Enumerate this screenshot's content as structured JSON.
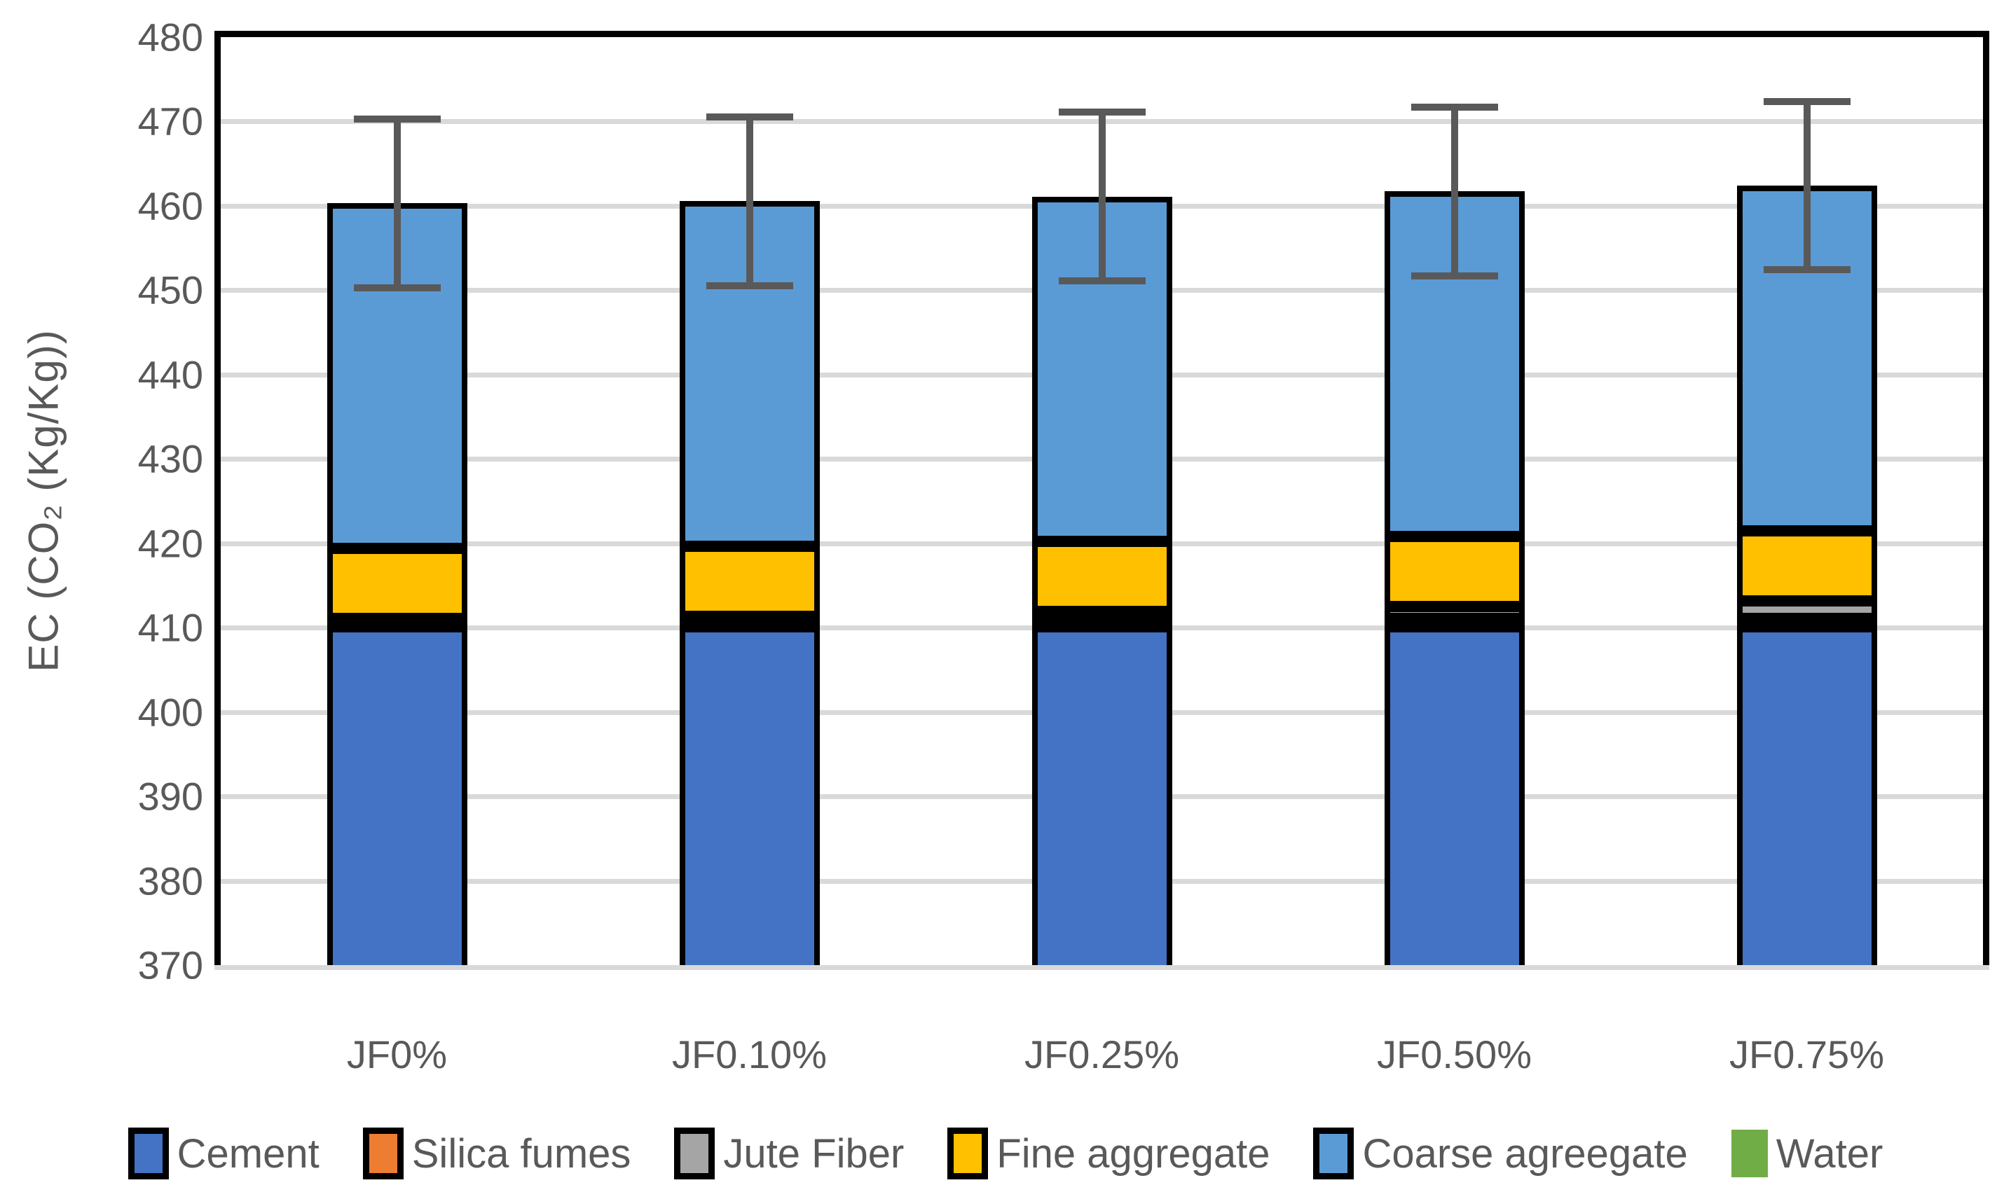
{
  "chart_data": {
    "type": "bar",
    "subtype": "stacked-with-error-bars",
    "title": "",
    "ylabel": "EC  (CO₂ (Kg/Kg))",
    "xlabel": "",
    "ylim": [
      370,
      480
    ],
    "ytick_step": 10,
    "ytick_labels": [
      "480",
      "470",
      "460",
      "450",
      "440",
      "430",
      "420",
      "410",
      "400",
      "390",
      "380",
      "370"
    ],
    "grid": true,
    "grid_color": "#d9d9d9",
    "axis_text_color": "#595959",
    "bar_border_color": "#000000",
    "error_bar_color": "#595959",
    "legend_position": "bottom",
    "categories": [
      "JF0%",
      "JF0.10%",
      "JF0.25%",
      "JF0.50%",
      "JF0.75%"
    ],
    "series": [
      {
        "name": "Cement",
        "color": "#4472C4",
        "swatch_border": true,
        "values": [
          410.1,
          410.1,
          410.1,
          410.1,
          410.1
        ]
      },
      {
        "name": "Silica fumes",
        "color": "#ED7D31",
        "swatch_border": true,
        "values": [
          1.0,
          1.0,
          1.0,
          1.0,
          1.0
        ]
      },
      {
        "name": "Jute Fiber",
        "color": "#A5A5A5",
        "swatch_border": true,
        "values": [
          0,
          0.25,
          0.8,
          1.4,
          2.1
        ]
      },
      {
        "name": "Fine aggregate",
        "color": "#FFC000",
        "swatch_border": true,
        "values": [
          8.3,
          8.3,
          8.3,
          8.3,
          8.3
        ]
      },
      {
        "name": "Coarse agreegate",
        "color": "#5B9BD5",
        "swatch_border": true,
        "values": [
          40.9,
          40.9,
          40.9,
          40.9,
          40.9
        ]
      },
      {
        "name": "Water",
        "color": "#70AD47",
        "swatch_border": false,
        "values": [
          0,
          0,
          0,
          0,
          0
        ]
      }
    ],
    "totals": [
      460.3,
      460.55,
      461.1,
      461.7,
      462.4
    ],
    "error_bars": {
      "low": [
        450.3,
        450.55,
        451.1,
        451.7,
        452.4
      ],
      "high": [
        470.3,
        470.55,
        471.1,
        471.7,
        472.4
      ]
    }
  }
}
